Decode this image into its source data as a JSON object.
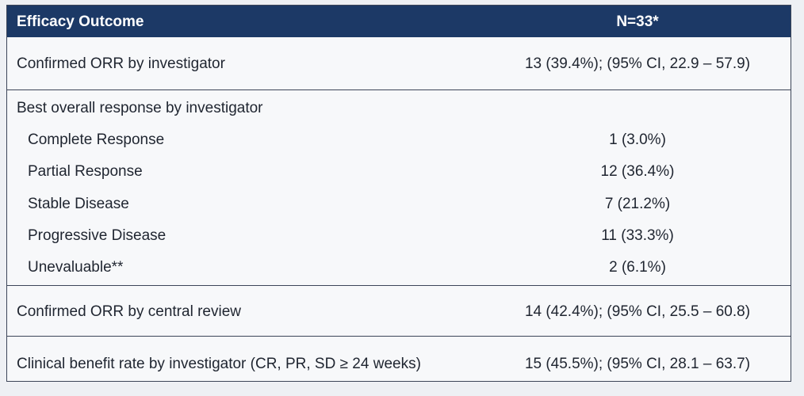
{
  "header": {
    "col1": "Efficacy Outcome",
    "col2": "N=33*"
  },
  "confirmed_orr_investigator": {
    "label": "Confirmed ORR by investigator",
    "value": "13 (39.4%); (95% CI, 22.9 – 57.9)"
  },
  "best_overall_response": {
    "label": "Best overall response by investigator",
    "rows": [
      {
        "label": "Complete Response",
        "value": "1 (3.0%)"
      },
      {
        "label": "Partial Response",
        "value": "12 (36.4%)"
      },
      {
        "label": "Stable Disease",
        "value": "7 (21.2%)"
      },
      {
        "label": "Progressive Disease",
        "value": "11 (33.3%)"
      },
      {
        "label": "Unevaluable**",
        "value": "2 (6.1%)"
      }
    ]
  },
  "confirmed_orr_central": {
    "label": "Confirmed ORR by central review",
    "value": "14 (42.4%); (95% CI, 25.5 – 60.8)"
  },
  "clinical_benefit_rate": {
    "label": "Clinical benefit rate by investigator (CR, PR, SD ≥ 24 weeks)",
    "value": "15 (45.5%); (95% CI, 28.1 – 63.7)"
  }
}
